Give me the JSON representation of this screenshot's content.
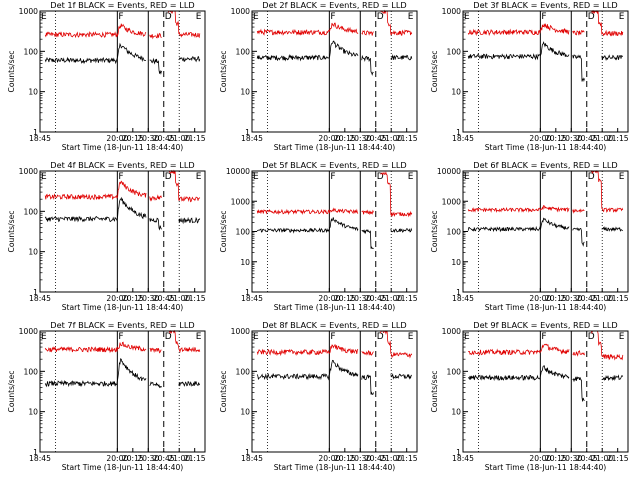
{
  "figure": {
    "title_template": "Det {id} BLACK = Events, RED = LLD",
    "ylabel": "Counts/sec",
    "xlabel": "Start Time (18-Jun-11 18:44:40)",
    "xticks": [
      "18:45",
      "20:00",
      "20:15",
      "20:30",
      "20:45",
      "21:00",
      "21:15"
    ]
  },
  "colors": {
    "events": "#000000",
    "lld": "#e00000",
    "background": "#ffffff"
  },
  "chart_data": [
    {
      "type": "line",
      "title": "Det 1f BLACK = Events, RED = LLD",
      "detector": "1f",
      "xlabel": "Start Time (18-Jun-11 18:44:40)",
      "ylabel": "Counts/sec",
      "yscale": "log",
      "ylim": [
        1,
        1000
      ],
      "yticks": [
        "1",
        "10",
        "100",
        "1000"
      ],
      "x_unit": "minutes after 18:44:40",
      "xlim": [
        0,
        160
      ],
      "marker_labels": [
        "E",
        "F",
        "D",
        "E"
      ],
      "series": [
        {
          "name": "Events",
          "color": "#000000",
          "base": 60,
          "peak": 150,
          "spike_low": 30,
          "post_level": 65
        },
        {
          "name": "LLD",
          "color": "#e00000",
          "base": 260,
          "peak": 450,
          "spike_high": 1000,
          "post_level": 260
        }
      ]
    },
    {
      "type": "line",
      "title": "Det 2f BLACK = Events, RED = LLD",
      "detector": "2f",
      "xlabel": "Start Time (18-Jun-11 18:44:40)",
      "ylabel": "Counts/sec",
      "yscale": "log",
      "ylim": [
        1,
        1000
      ],
      "yticks": [
        "1",
        "10",
        "100",
        "1000"
      ],
      "x_unit": "minutes after 18:44:40",
      "xlim": [
        0,
        160
      ],
      "marker_labels": [
        "E",
        "F",
        "D",
        "E"
      ],
      "series": [
        {
          "name": "Events",
          "color": "#000000",
          "base": 70,
          "peak": 180,
          "spike_low": 30,
          "post_level": 70
        },
        {
          "name": "LLD",
          "color": "#e00000",
          "base": 300,
          "peak": 500,
          "spike_high": 1000,
          "post_level": 290
        }
      ]
    },
    {
      "type": "line",
      "title": "Det 3f BLACK = Events, RED = LLD",
      "detector": "3f",
      "xlabel": "Start Time (18-Jun-11 18:44:40)",
      "ylabel": "Counts/sec",
      "yscale": "log",
      "ylim": [
        1,
        1000
      ],
      "yticks": [
        "1",
        "10",
        "100",
        "1000"
      ],
      "x_unit": "minutes after 18:44:40",
      "xlim": [
        0,
        160
      ],
      "marker_labels": [
        "E",
        "F",
        "D",
        "E"
      ],
      "series": [
        {
          "name": "Events",
          "color": "#000000",
          "base": 75,
          "peak": 160,
          "spike_low": 20,
          "post_level": 70
        },
        {
          "name": "LLD",
          "color": "#e00000",
          "base": 300,
          "peak": 480,
          "spike_high": 1000,
          "post_level": 280
        }
      ]
    },
    {
      "type": "line",
      "title": "Det 4f BLACK = Events, RED = LLD",
      "detector": "4f",
      "xlabel": "Start Time (18-Jun-11 18:44:40)",
      "ylabel": "Counts/sec",
      "yscale": "log",
      "ylim": [
        1,
        1000
      ],
      "yticks": [
        "1",
        "10",
        "100",
        "1000"
      ],
      "x_unit": "minutes after 18:44:40",
      "xlim": [
        0,
        160
      ],
      "marker_labels": [
        "E",
        "F",
        "D",
        "E"
      ],
      "series": [
        {
          "name": "Events",
          "color": "#000000",
          "base": 65,
          "peak": 210,
          "spike_low": 40,
          "post_level": 60
        },
        {
          "name": "LLD",
          "color": "#e00000",
          "base": 230,
          "peak": 550,
          "spike_high": 1000,
          "post_level": 200
        }
      ]
    },
    {
      "type": "line",
      "title": "Det 5f BLACK = Events, RED = LLD",
      "detector": "5f",
      "xlabel": "Start Time (18-Jun-11 18:44:40)",
      "ylabel": "Counts/sec",
      "yscale": "log",
      "ylim": [
        1,
        10000
      ],
      "yticks": [
        "1",
        "10",
        "100",
        "1000",
        "10000"
      ],
      "x_unit": "minutes after 18:44:40",
      "xlim": [
        0,
        160
      ],
      "marker_labels": [
        "E",
        "F",
        "D",
        "E"
      ],
      "series": [
        {
          "name": "Events",
          "color": "#000000",
          "base": 110,
          "peak": 280,
          "spike_low": 30,
          "post_level": 110
        },
        {
          "name": "LLD",
          "color": "#e00000",
          "base": 450,
          "peak": 520,
          "spike_high": 8000,
          "post_level": 380
        }
      ]
    },
    {
      "type": "line",
      "title": "Det 6f BLACK = Events, RED = LLD",
      "detector": "6f",
      "xlabel": "Start Time (18-Jun-11 18:44:40)",
      "ylabel": "Counts/sec",
      "yscale": "log",
      "ylim": [
        1,
        10000
      ],
      "yticks": [
        "1",
        "10",
        "100",
        "1000",
        "10000"
      ],
      "x_unit": "minutes after 18:44:40",
      "xlim": [
        0,
        160
      ],
      "marker_labels": [
        "E",
        "F",
        "D",
        "E"
      ],
      "series": [
        {
          "name": "Events",
          "color": "#000000",
          "base": 120,
          "peak": 260,
          "spike_low": 40,
          "post_level": 120
        },
        {
          "name": "LLD",
          "color": "#e00000",
          "base": 520,
          "peak": 640,
          "spike_high": 10000,
          "post_level": 520
        }
      ]
    },
    {
      "type": "line",
      "title": "Det 7f BLACK = Events, RED = LLD",
      "detector": "7f",
      "xlabel": "Start Time (18-Jun-11 18:44:40)",
      "ylabel": "Counts/sec",
      "yscale": "log",
      "ylim": [
        1,
        1000
      ],
      "yticks": [
        "1",
        "10",
        "100",
        "1000"
      ],
      "x_unit": "minutes after 18:44:40",
      "xlim": [
        0,
        160
      ],
      "marker_labels": [
        "E",
        "F",
        "D",
        "E"
      ],
      "series": [
        {
          "name": "Events",
          "color": "#000000",
          "base": 50,
          "peak": 200,
          "spike_low": 40,
          "post_level": 50
        },
        {
          "name": "LLD",
          "color": "#e00000",
          "base": 350,
          "peak": 500,
          "spike_high": 1000,
          "post_level": 350
        }
      ]
    },
    {
      "type": "line",
      "title": "Det 8f BLACK = Events, RED = LLD",
      "detector": "8f",
      "xlabel": "Start Time (18-Jun-11 18:44:40)",
      "ylabel": "Counts/sec",
      "yscale": "log",
      "ylim": [
        1,
        1000
      ],
      "yticks": [
        "1",
        "10",
        "100",
        "1000"
      ],
      "x_unit": "minutes after 18:44:40",
      "xlim": [
        0,
        160
      ],
      "marker_labels": [
        "E",
        "F",
        "D",
        "E"
      ],
      "series": [
        {
          "name": "Events",
          "color": "#000000",
          "base": 75,
          "peak": 180,
          "spike_low": 30,
          "post_level": 75
        },
        {
          "name": "LLD",
          "color": "#e00000",
          "base": 300,
          "peak": 450,
          "spike_high": 1000,
          "post_level": 260
        }
      ]
    },
    {
      "type": "line",
      "title": "Det 9f BLACK = Events, RED = LLD",
      "detector": "9f",
      "xlabel": "Start Time (18-Jun-11 18:44:40)",
      "ylabel": "Counts/sec",
      "yscale": "log",
      "ylim": [
        1,
        1000
      ],
      "yticks": [
        "1",
        "10",
        "100",
        "1000"
      ],
      "x_unit": "minutes after 18:44:40",
      "xlim": [
        0,
        160
      ],
      "marker_labels": [
        "E",
        "F",
        "D",
        "E"
      ],
      "series": [
        {
          "name": "Events",
          "color": "#000000",
          "base": 70,
          "peak": 130,
          "spike_low": 20,
          "post_level": 70
        },
        {
          "name": "LLD",
          "color": "#e00000",
          "base": 300,
          "peak": 470,
          "spike_high": 1000,
          "post_level": 230
        }
      ]
    }
  ]
}
